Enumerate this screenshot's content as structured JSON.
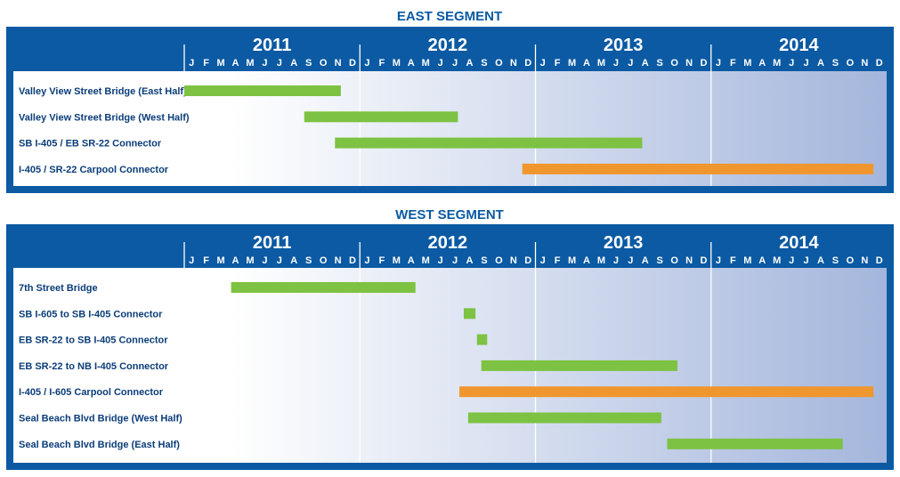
{
  "chart_data": {
    "type": "gantt",
    "colors": {
      "frame": "#0b5aa3",
      "title": "#0b5aa3",
      "header_text": "#ffffff",
      "row_text": "#0b3d79",
      "bar_green": "#7dc242",
      "bar_orange": "#f0962e",
      "panel_light": "#ffffff",
      "panel_dark": "#a4b6dc"
    },
    "years": [
      "2011",
      "2012",
      "2013",
      "2014"
    ],
    "month_letters": [
      "J",
      "F",
      "M",
      "A",
      "M",
      "J",
      "J",
      "A",
      "S",
      "O",
      "N",
      "D"
    ],
    "segments": [
      {
        "title": "EAST SEGMENT",
        "tasks": [
          {
            "label": "Valley View Street Bridge (East Half)",
            "start": 0.0,
            "end": 10.7,
            "color": "green"
          },
          {
            "label": "Valley View Street Bridge (West Half)",
            "start": 8.2,
            "end": 18.7,
            "color": "green"
          },
          {
            "label": "SB I-405 / EB SR-22 Connector",
            "start": 10.3,
            "end": 31.3,
            "color": "green"
          },
          {
            "label": "I-405 / SR-22 Carpool Connector",
            "start": 23.1,
            "end": 47.1,
            "color": "orange"
          }
        ]
      },
      {
        "title": "WEST SEGMENT",
        "tasks": [
          {
            "label": "7th Street Bridge",
            "start": 3.2,
            "end": 15.8,
            "color": "green"
          },
          {
            "label": "SB I-605 to SB I-405 Connector",
            "start": 19.1,
            "end": 19.9,
            "color": "green"
          },
          {
            "label": "EB SR-22 to SB I-405 Connector",
            "start": 20.0,
            "end": 20.7,
            "color": "green"
          },
          {
            "label": "EB SR-22 to NB I-405 Connector",
            "start": 20.3,
            "end": 33.7,
            "color": "green"
          },
          {
            "label": "I-405 / I-605 Carpool Connector",
            "start": 18.8,
            "end": 47.1,
            "color": "orange"
          },
          {
            "label": "Seal Beach Blvd Bridge (West Half)",
            "start": 19.4,
            "end": 32.6,
            "color": "green"
          },
          {
            "label": "Seal Beach Blvd Bridge (East Half)",
            "start": 33.0,
            "end": 45.0,
            "color": "green"
          }
        ]
      }
    ]
  }
}
